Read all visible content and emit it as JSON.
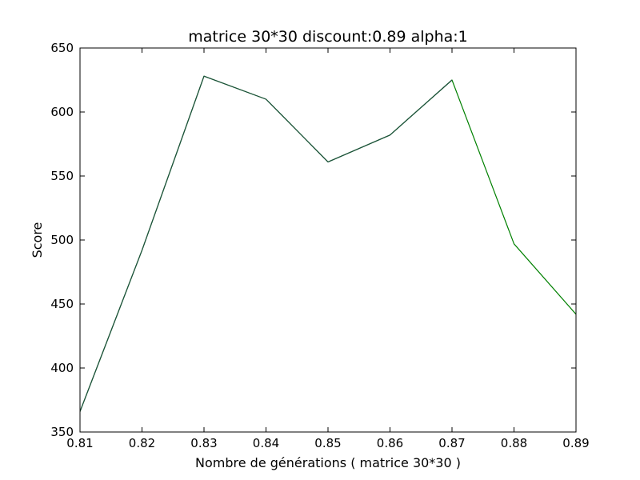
{
  "chart_data": {
    "type": "line",
    "title": "matrice 30*30 discount:0.89 alpha:1",
    "xlabel": "Nombre de générations ( matrice 30*30 )",
    "ylabel": "Score",
    "xlim": [
      0.81,
      0.89
    ],
    "ylim": [
      350,
      650
    ],
    "xticks": [
      "0.81",
      "0.82",
      "0.83",
      "0.84",
      "0.85",
      "0.86",
      "0.87",
      "0.88",
      "0.89"
    ],
    "yticks": [
      "350",
      "400",
      "450",
      "500",
      "550",
      "600",
      "650"
    ],
    "grid": false,
    "series": [
      {
        "color": "#008000",
        "x": [
          0.81,
          0.82,
          0.83,
          0.84,
          0.85,
          0.86,
          0.87,
          0.88,
          0.89
        ],
        "y": [
          366,
          492,
          628,
          610,
          561,
          582,
          625,
          497,
          442
        ]
      },
      {
        "color": "#1f4f3f",
        "x": [
          0.81,
          0.82,
          0.83,
          0.84,
          0.85,
          0.86,
          0.87
        ],
        "y": [
          366,
          492,
          628,
          610,
          561,
          582,
          625
        ]
      }
    ]
  }
}
